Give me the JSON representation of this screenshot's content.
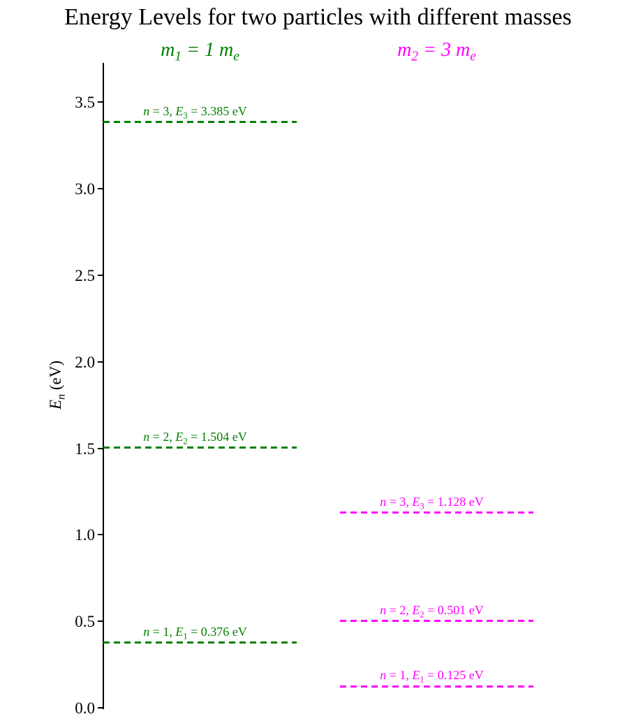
{
  "chart_data": {
    "type": "line",
    "subtype": "energy-level-diagram",
    "title": "Energy Levels for two particles with different masses",
    "xlabel": "",
    "ylabel": "E_n (eV)",
    "ylim": [
      0,
      3.73
    ],
    "yticks": [
      0.0,
      0.5,
      1.0,
      1.5,
      2.0,
      2.5,
      3.0,
      3.5
    ],
    "ytick_labels": [
      "0.0",
      "0.5",
      "1.0",
      "1.5",
      "2.0",
      "2.5",
      "3.0",
      "3.5"
    ],
    "grid": false,
    "legend": "none",
    "unit": "eV",
    "series": [
      {
        "name": "particle-1",
        "header": "m_1 = 1 m_e",
        "color": "#008000",
        "levels": [
          {
            "n": 1,
            "energy": 0.376,
            "label": "n = 1, E_1 = 0.376 eV"
          },
          {
            "n": 2,
            "energy": 1.504,
            "label": "n = 2, E_2 = 1.504 eV"
          },
          {
            "n": 3,
            "energy": 3.385,
            "label": "n = 3, E_3 = 3.385 eV"
          }
        ]
      },
      {
        "name": "particle-2",
        "header": "m_2 = 3 m_e",
        "color": "#FF00FF",
        "levels": [
          {
            "n": 1,
            "energy": 0.125,
            "label": "n = 1, E_1 = 0.125 eV"
          },
          {
            "n": 2,
            "energy": 0.501,
            "label": "n = 2, E_2 = 0.501 eV"
          },
          {
            "n": 3,
            "energy": 1.128,
            "label": "n = 3, E_3 = 1.128 eV"
          }
        ]
      }
    ]
  }
}
